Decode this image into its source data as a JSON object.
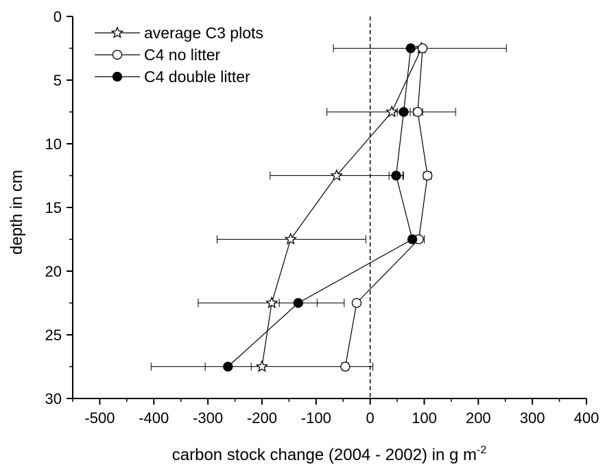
{
  "chart_data": {
    "type": "scatter",
    "orientation": "depth-profile",
    "title": "",
    "xlabel": "carbon stock change (2004 - 2002) in g m",
    "xlabel_superscript": "-2",
    "ylabel": "depth in cm",
    "xlim": [
      -550,
      400
    ],
    "ylim": [
      0,
      30
    ],
    "y_inverted": true,
    "x_ticks": [
      -500,
      -400,
      -300,
      -200,
      -100,
      0,
      100,
      200,
      300,
      400
    ],
    "y_ticks": [
      0,
      5,
      10,
      15,
      20,
      25,
      30
    ],
    "reference_line": {
      "x": 0,
      "style": "dashed"
    },
    "legend_position": "top-left",
    "series": [
      {
        "name": "average C3 plots",
        "marker": "open-star",
        "points": [
          {
            "depth": 2.5,
            "value": 95,
            "err_low": 95,
            "err_high": 95
          },
          {
            "depth": 7.5,
            "value": 40,
            "err_low": -80,
            "err_high": 158
          },
          {
            "depth": 12.5,
            "value": -62,
            "err_low": -185,
            "err_high": 60
          },
          {
            "depth": 17.5,
            "value": -147,
            "err_low": -283,
            "err_high": -8
          },
          {
            "depth": 22.5,
            "value": -182,
            "err_low": -318,
            "err_high": -48
          },
          {
            "depth": 27.5,
            "value": -200,
            "err_low": -405,
            "err_high": 5
          }
        ]
      },
      {
        "name": "C4 no litter",
        "marker": "open-circle",
        "points": [
          {
            "depth": 2.5,
            "value": 97,
            "err_low": 97,
            "err_high": 97
          },
          {
            "depth": 7.5,
            "value": 88,
            "err_low": 80,
            "err_high": 97
          },
          {
            "depth": 12.5,
            "value": 106,
            "err_low": 99,
            "err_high": 113
          },
          {
            "depth": 17.5,
            "value": 90,
            "err_low": 80,
            "err_high": 100
          },
          {
            "depth": 22.5,
            "value": -25,
            "err_low": -30,
            "err_high": -20
          },
          {
            "depth": 27.5,
            "value": -46,
            "err_low": -52,
            "err_high": -40
          }
        ]
      },
      {
        "name": "C4 double litter",
        "marker": "filled-circle",
        "points": [
          {
            "depth": 2.5,
            "value": 75,
            "err_low": -68,
            "err_high": 252
          },
          {
            "depth": 7.5,
            "value": 62,
            "err_low": 50,
            "err_high": 74
          },
          {
            "depth": 12.5,
            "value": 48,
            "err_low": 35,
            "err_high": 62
          },
          {
            "depth": 17.5,
            "value": 78,
            "err_low": 72,
            "err_high": 84
          },
          {
            "depth": 22.5,
            "value": -133,
            "err_low": -168,
            "err_high": -98
          },
          {
            "depth": 27.5,
            "value": -263,
            "err_low": -305,
            "err_high": -220
          }
        ]
      }
    ]
  }
}
